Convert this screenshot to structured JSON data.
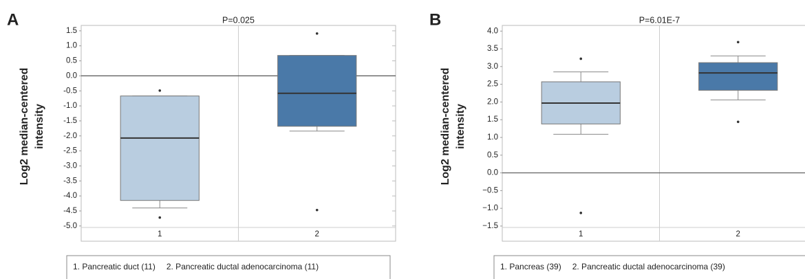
{
  "chart_data": [
    {
      "type": "box",
      "panel": "A",
      "title": "P=0.025",
      "ylabel": [
        "Log2 median-centered",
        "intensity"
      ],
      "categories": [
        "1",
        "2"
      ],
      "legend": [
        "1. Pancreatic duct (11)",
        "2. Pancreatic ductal adenocarcinoma (11)"
      ],
      "colors": [
        "#b9cde0",
        "#4a79a8"
      ],
      "boxes": [
        {
          "whisker_low": -4.4,
          "q1": -4.15,
          "median": -2.07,
          "q3": -0.67,
          "whisker_high": -0.67,
          "outliers": [
            -0.49,
            -4.72
          ]
        },
        {
          "whisker_low": -1.84,
          "q1": -1.68,
          "median": -0.58,
          "q3": 0.68,
          "whisker_high": 0.68,
          "outliers": [
            1.41,
            -4.47
          ]
        }
      ],
      "ylim": [
        -5.05,
        1.68
      ],
      "yticks": [
        1.5,
        {
          "value": 1,
          "label": "1.0"
        },
        0.5,
        {
          "value": 0,
          "label": "0.0"
        },
        -0.5,
        {
          "value": -1,
          "label": "-1.0"
        },
        -1.5,
        {
          "value": -2,
          "label": "-2.0"
        },
        -2.5,
        {
          "value": -3,
          "label": "-3.0"
        },
        -3.5,
        {
          "value": -4,
          "label": "-4.0"
        },
        -4.5,
        {
          "value": -5,
          "label": "-5.0"
        }
      ]
    },
    {
      "type": "box",
      "panel": "B",
      "title": "P=6.01E-7",
      "ylabel": [
        "Log2 median-centered",
        "intensity"
      ],
      "categories": [
        "1",
        "2"
      ],
      "legend": [
        "1. Pancreas (39)",
        "2. Pancreatic ductal adenocarcinoma (39)"
      ],
      "colors": [
        "#b9cde0",
        "#4a79a8"
      ],
      "boxes": [
        {
          "whisker_low": 1.09,
          "q1": 1.38,
          "median": 1.97,
          "q3": 2.57,
          "whisker_high": 2.85,
          "outliers": [
            3.22,
            -1.13
          ]
        },
        {
          "whisker_low": 2.06,
          "q1": 2.33,
          "median": 2.82,
          "q3": 3.11,
          "whisker_high": 3.3,
          "outliers": [
            3.69,
            1.44
          ]
        }
      ],
      "ylim": [
        -1.54,
        4.16
      ],
      "yticks": [
        {
          "value": 4,
          "label": "4.0"
        },
        3.5,
        {
          "value": 3,
          "label": "3.0"
        },
        2.5,
        {
          "value": 2,
          "label": "2.0"
        },
        1.5,
        {
          "value": 1,
          "label": "1.0"
        },
        0.5,
        {
          "value": 0,
          "label": "0.0"
        },
        {
          "value": -0.5,
          "label": "−0.5"
        },
        {
          "value": -1,
          "label": "−1.0"
        },
        {
          "value": -1.5,
          "label": "−1.5"
        }
      ]
    }
  ]
}
